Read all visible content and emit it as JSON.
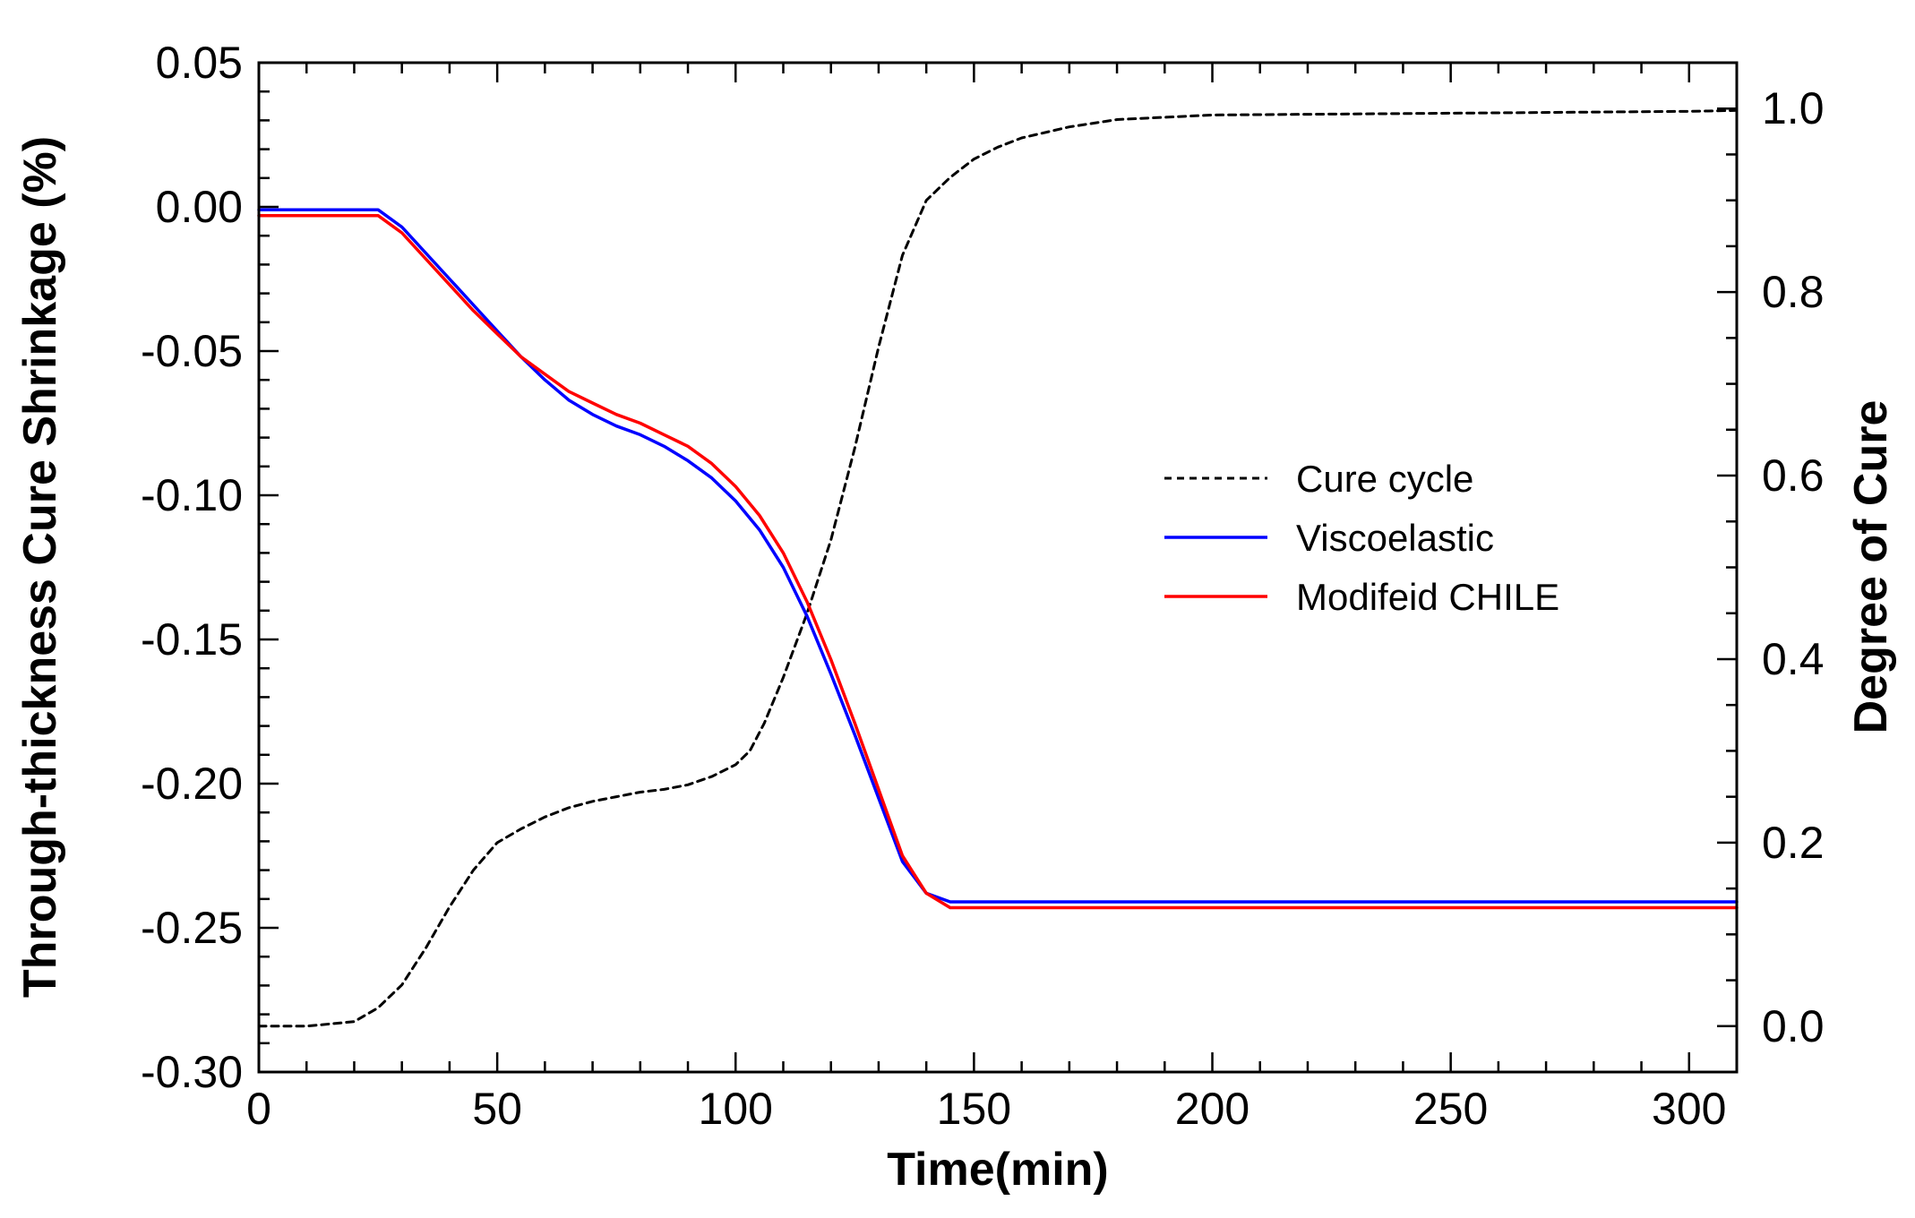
{
  "chart_data": {
    "type": "line",
    "title": "",
    "xlabel": "Time(min)",
    "ylabel": "Through-thickness Cure Shrinkage (%)",
    "y2label": "Degree of Cure",
    "xlim": [
      0,
      310
    ],
    "ylim": [
      -0.3,
      0.05
    ],
    "y2lim": [
      -0.05,
      1.05
    ],
    "xticks": [
      "0",
      "50",
      "100",
      "150",
      "200",
      "250",
      "300"
    ],
    "xtick_values": [
      0,
      50,
      100,
      150,
      200,
      250,
      300
    ],
    "yticks": [
      "0.05",
      "0.00",
      "-0.05",
      "-0.10",
      "-0.15",
      "-0.20",
      "-0.25",
      "-0.30"
    ],
    "ytick_values": [
      0.05,
      0.0,
      -0.05,
      -0.1,
      -0.15,
      -0.2,
      -0.25,
      -0.3
    ],
    "y2ticks": [
      "0.0",
      "0.2",
      "0.4",
      "0.6",
      "0.8",
      "1.0"
    ],
    "y2tick_values": [
      0.0,
      0.2,
      0.4,
      0.6,
      0.8,
      1.0
    ],
    "legend_position": "right-center",
    "series": [
      {
        "name": "Cure cycle",
        "axis": "right",
        "color": "#000000",
        "dash": "dashed",
        "x": [
          0,
          10,
          20,
          25,
          30,
          35,
          40,
          45,
          50,
          55,
          60,
          65,
          70,
          75,
          80,
          85,
          90,
          95,
          100,
          103,
          106,
          110,
          115,
          120,
          125,
          130,
          135,
          140,
          145,
          150,
          155,
          160,
          170,
          180,
          200,
          250,
          300,
          310
        ],
        "values": [
          0.0,
          0.0,
          0.005,
          0.02,
          0.045,
          0.085,
          0.13,
          0.17,
          0.2,
          0.215,
          0.228,
          0.238,
          0.245,
          0.25,
          0.255,
          0.258,
          0.263,
          0.272,
          0.285,
          0.3,
          0.33,
          0.38,
          0.45,
          0.53,
          0.63,
          0.74,
          0.84,
          0.9,
          0.925,
          0.945,
          0.958,
          0.968,
          0.98,
          0.988,
          0.993,
          0.995,
          0.997,
          0.998
        ]
      },
      {
        "name": "Viscoelastic",
        "axis": "left",
        "color": "#0000ff",
        "dash": "solid",
        "x": [
          0,
          10,
          20,
          25,
          30,
          35,
          40,
          45,
          50,
          55,
          60,
          65,
          70,
          75,
          80,
          85,
          90,
          95,
          100,
          105,
          110,
          115,
          120,
          125,
          130,
          135,
          140,
          145,
          150,
          200,
          250,
          310
        ],
        "values": [
          -0.001,
          -0.001,
          -0.001,
          -0.001,
          -0.007,
          -0.016,
          -0.025,
          -0.034,
          -0.043,
          -0.052,
          -0.06,
          -0.067,
          -0.072,
          -0.076,
          -0.079,
          -0.083,
          -0.088,
          -0.094,
          -0.102,
          -0.112,
          -0.125,
          -0.142,
          -0.162,
          -0.183,
          -0.205,
          -0.227,
          -0.238,
          -0.241,
          -0.241,
          -0.241,
          -0.241,
          -0.241
        ]
      },
      {
        "name": "Modifeid CHILE",
        "axis": "left",
        "color": "#ff0000",
        "dash": "solid",
        "x": [
          0,
          10,
          20,
          25,
          30,
          35,
          40,
          45,
          50,
          55,
          60,
          65,
          70,
          75,
          80,
          85,
          90,
          95,
          100,
          105,
          110,
          115,
          120,
          125,
          130,
          135,
          140,
          145,
          150,
          200,
          250,
          310
        ],
        "values": [
          -0.003,
          -0.003,
          -0.003,
          -0.003,
          -0.009,
          -0.018,
          -0.027,
          -0.036,
          -0.044,
          -0.052,
          -0.058,
          -0.064,
          -0.068,
          -0.072,
          -0.075,
          -0.079,
          -0.083,
          -0.089,
          -0.097,
          -0.107,
          -0.12,
          -0.137,
          -0.157,
          -0.179,
          -0.202,
          -0.225,
          -0.238,
          -0.243,
          -0.243,
          -0.243,
          -0.243,
          -0.243
        ]
      }
    ]
  }
}
